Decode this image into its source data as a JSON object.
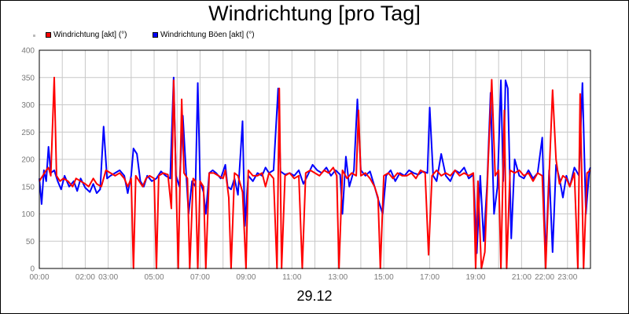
{
  "chart_data": {
    "type": "line",
    "title": "Windrichtung [pro Tag]",
    "xlabel": "29.12",
    "ylabel": "",
    "ylim": [
      0,
      400
    ],
    "yticks": [
      0,
      50,
      100,
      150,
      200,
      250,
      300,
      350,
      400
    ],
    "xlim": [
      0,
      24
    ],
    "xticks": [
      {
        "t": 0,
        "label": "00:00"
      },
      {
        "t": 2,
        "label": "02:00"
      },
      {
        "t": 3,
        "label": "03:00"
      },
      {
        "t": 5,
        "label": "05:00"
      },
      {
        "t": 7,
        "label": "07:00"
      },
      {
        "t": 9,
        "label": "09:00"
      },
      {
        "t": 11,
        "label": "11:00"
      },
      {
        "t": 13,
        "label": "13:00"
      },
      {
        "t": 15,
        "label": "15:00"
      },
      {
        "t": 17,
        "label": "17:00"
      },
      {
        "t": 19,
        "label": "19:00"
      },
      {
        "t": 21,
        "label": "21:00"
      },
      {
        "t": 22,
        "label": "22:00"
      },
      {
        "t": 23,
        "label": "23:00"
      }
    ],
    "grid": true,
    "legend_position": "top-left",
    "series": [
      {
        "name": "Windrichtung Böen [akt] (°)",
        "color": "#0000ff",
        "points": [
          [
            0.0,
            165
          ],
          [
            0.1,
            118
          ],
          [
            0.2,
            180
          ],
          [
            0.3,
            160
          ],
          [
            0.4,
            223
          ],
          [
            0.5,
            175
          ],
          [
            0.65,
            180
          ],
          [
            0.8,
            160
          ],
          [
            0.95,
            145
          ],
          [
            1.1,
            170
          ],
          [
            1.3,
            150
          ],
          [
            1.5,
            160
          ],
          [
            1.65,
            142
          ],
          [
            1.8,
            165
          ],
          [
            2.0,
            148
          ],
          [
            2.2,
            140
          ],
          [
            2.35,
            155
          ],
          [
            2.5,
            138
          ],
          [
            2.65,
            145
          ],
          [
            2.8,
            260
          ],
          [
            2.95,
            165
          ],
          [
            3.1,
            170
          ],
          [
            3.3,
            175
          ],
          [
            3.5,
            180
          ],
          [
            3.7,
            170
          ],
          [
            3.85,
            138
          ],
          [
            4.0,
            170
          ],
          [
            4.1,
            220
          ],
          [
            4.25,
            210
          ],
          [
            4.4,
            160
          ],
          [
            4.55,
            150
          ],
          [
            4.7,
            170
          ],
          [
            4.9,
            160
          ],
          [
            5.1,
            165
          ],
          [
            5.3,
            178
          ],
          [
            5.5,
            170
          ],
          [
            5.7,
            165
          ],
          [
            5.85,
            350
          ],
          [
            5.95,
            170
          ],
          [
            6.1,
            150
          ],
          [
            6.25,
            280
          ],
          [
            6.4,
            170
          ],
          [
            6.5,
            100
          ],
          [
            6.65,
            160
          ],
          [
            6.8,
            150
          ],
          [
            6.9,
            340
          ],
          [
            7.0,
            160
          ],
          [
            7.15,
            140
          ],
          [
            7.25,
            100
          ],
          [
            7.4,
            175
          ],
          [
            7.55,
            180
          ],
          [
            7.7,
            175
          ],
          [
            7.9,
            165
          ],
          [
            8.1,
            190
          ],
          [
            8.2,
            150
          ],
          [
            8.35,
            145
          ],
          [
            8.5,
            165
          ],
          [
            8.65,
            135
          ],
          [
            8.85,
            270
          ],
          [
            8.95,
            78
          ],
          [
            9.1,
            170
          ],
          [
            9.3,
            160
          ],
          [
            9.5,
            175
          ],
          [
            9.7,
            170
          ],
          [
            9.85,
            185
          ],
          [
            10.0,
            175
          ],
          [
            10.2,
            180
          ],
          [
            10.4,
            330
          ],
          [
            10.5,
            178
          ],
          [
            10.7,
            172
          ],
          [
            10.9,
            175
          ],
          [
            11.1,
            170
          ],
          [
            11.3,
            180
          ],
          [
            11.5,
            155
          ],
          [
            11.7,
            172
          ],
          [
            11.9,
            190
          ],
          [
            12.1,
            180
          ],
          [
            12.3,
            175
          ],
          [
            12.5,
            185
          ],
          [
            12.7,
            170
          ],
          [
            12.9,
            180
          ],
          [
            13.1,
            172
          ],
          [
            13.2,
            100
          ],
          [
            13.35,
            205
          ],
          [
            13.5,
            150
          ],
          [
            13.7,
            180
          ],
          [
            13.85,
            310
          ],
          [
            14.0,
            180
          ],
          [
            14.2,
            170
          ],
          [
            14.4,
            178
          ],
          [
            14.6,
            150
          ],
          [
            14.8,
            120
          ],
          [
            14.95,
            100
          ],
          [
            15.1,
            170
          ],
          [
            15.3,
            180
          ],
          [
            15.5,
            160
          ],
          [
            15.7,
            175
          ],
          [
            15.9,
            170
          ],
          [
            16.1,
            180
          ],
          [
            16.3,
            175
          ],
          [
            16.5,
            172
          ],
          [
            16.7,
            178
          ],
          [
            16.9,
            175
          ],
          [
            17.0,
            295
          ],
          [
            17.15,
            170
          ],
          [
            17.3,
            160
          ],
          [
            17.5,
            210
          ],
          [
            17.7,
            170
          ],
          [
            17.9,
            160
          ],
          [
            18.1,
            180
          ],
          [
            18.3,
            175
          ],
          [
            18.5,
            185
          ],
          [
            18.7,
            165
          ],
          [
            18.9,
            172
          ],
          [
            19.05,
            28
          ],
          [
            19.2,
            170
          ],
          [
            19.35,
            50
          ],
          [
            19.5,
            155
          ],
          [
            19.65,
            322
          ],
          [
            19.8,
            100
          ],
          [
            19.95,
            150
          ],
          [
            20.1,
            345
          ],
          [
            20.2,
            160
          ],
          [
            20.3,
            345
          ],
          [
            20.4,
            330
          ],
          [
            20.55,
            55
          ],
          [
            20.7,
            200
          ],
          [
            20.9,
            170
          ],
          [
            21.1,
            165
          ],
          [
            21.3,
            180
          ],
          [
            21.5,
            165
          ],
          [
            21.7,
            175
          ],
          [
            21.9,
            240
          ],
          [
            22.05,
            15
          ],
          [
            22.2,
            180
          ],
          [
            22.35,
            30
          ],
          [
            22.5,
            190
          ],
          [
            22.65,
            165
          ],
          [
            22.8,
            130
          ],
          [
            22.95,
            170
          ],
          [
            23.1,
            150
          ],
          [
            23.3,
            185
          ],
          [
            23.5,
            170
          ],
          [
            23.65,
            340
          ],
          [
            23.8,
            100
          ],
          [
            23.95,
            180
          ],
          [
            24.0,
            185
          ]
        ]
      },
      {
        "name": "Windrichtung [akt] (°)",
        "color": "#ff0000",
        "points": [
          [
            0.0,
            160
          ],
          [
            0.15,
            170
          ],
          [
            0.3,
            180
          ],
          [
            0.4,
            185
          ],
          [
            0.5,
            170
          ],
          [
            0.65,
            350
          ],
          [
            0.75,
            170
          ],
          [
            0.9,
            160
          ],
          [
            1.05,
            165
          ],
          [
            1.25,
            160
          ],
          [
            1.45,
            150
          ],
          [
            1.6,
            165
          ],
          [
            1.8,
            160
          ],
          [
            2.0,
            155
          ],
          [
            2.15,
            150
          ],
          [
            2.35,
            165
          ],
          [
            2.5,
            155
          ],
          [
            2.7,
            150
          ],
          [
            2.9,
            180
          ],
          [
            3.1,
            175
          ],
          [
            3.3,
            170
          ],
          [
            3.5,
            175
          ],
          [
            3.7,
            165
          ],
          [
            3.85,
            150
          ],
          [
            4.0,
            165
          ],
          [
            4.1,
            0
          ],
          [
            4.2,
            170
          ],
          [
            4.35,
            160
          ],
          [
            4.5,
            150
          ],
          [
            4.65,
            165
          ],
          [
            4.8,
            170
          ],
          [
            5.0,
            165
          ],
          [
            5.1,
            0
          ],
          [
            5.2,
            170
          ],
          [
            5.4,
            175
          ],
          [
            5.6,
            172
          ],
          [
            5.75,
            110
          ],
          [
            5.85,
            345
          ],
          [
            5.95,
            165
          ],
          [
            6.05,
            0
          ],
          [
            6.2,
            310
          ],
          [
            6.3,
            175
          ],
          [
            6.45,
            165
          ],
          [
            6.55,
            0
          ],
          [
            6.7,
            165
          ],
          [
            6.8,
            160
          ],
          [
            6.9,
            0
          ],
          [
            7.0,
            160
          ],
          [
            7.15,
            150
          ],
          [
            7.25,
            0
          ],
          [
            7.4,
            175
          ],
          [
            7.6,
            175
          ],
          [
            7.8,
            170
          ],
          [
            8.0,
            165
          ],
          [
            8.1,
            180
          ],
          [
            8.25,
            130
          ],
          [
            8.35,
            0
          ],
          [
            8.5,
            175
          ],
          [
            8.65,
            170
          ],
          [
            8.85,
            140
          ],
          [
            9.0,
            0
          ],
          [
            9.1,
            180
          ],
          [
            9.3,
            170
          ],
          [
            9.5,
            170
          ],
          [
            9.7,
            175
          ],
          [
            9.85,
            150
          ],
          [
            10.0,
            175
          ],
          [
            10.2,
            165
          ],
          [
            10.35,
            0
          ],
          [
            10.45,
            330
          ],
          [
            10.55,
            0
          ],
          [
            10.7,
            170
          ],
          [
            10.9,
            175
          ],
          [
            11.1,
            165
          ],
          [
            11.3,
            170
          ],
          [
            11.45,
            0
          ],
          [
            11.6,
            175
          ],
          [
            11.8,
            180
          ],
          [
            12.0,
            175
          ],
          [
            12.2,
            170
          ],
          [
            12.4,
            180
          ],
          [
            12.6,
            175
          ],
          [
            12.8,
            185
          ],
          [
            12.95,
            170
          ],
          [
            13.05,
            0
          ],
          [
            13.2,
            180
          ],
          [
            13.4,
            165
          ],
          [
            13.6,
            175
          ],
          [
            13.8,
            170
          ],
          [
            13.9,
            290
          ],
          [
            14.0,
            170
          ],
          [
            14.2,
            175
          ],
          [
            14.4,
            165
          ],
          [
            14.6,
            150
          ],
          [
            14.75,
            130
          ],
          [
            14.85,
            0
          ],
          [
            15.0,
            170
          ],
          [
            15.2,
            175
          ],
          [
            15.4,
            165
          ],
          [
            15.6,
            175
          ],
          [
            15.8,
            170
          ],
          [
            16.0,
            170
          ],
          [
            16.2,
            175
          ],
          [
            16.4,
            165
          ],
          [
            16.6,
            180
          ],
          [
            16.8,
            175
          ],
          [
            16.95,
            25
          ],
          [
            17.1,
            170
          ],
          [
            17.3,
            180
          ],
          [
            17.5,
            170
          ],
          [
            17.7,
            175
          ],
          [
            17.9,
            170
          ],
          [
            18.1,
            180
          ],
          [
            18.3,
            170
          ],
          [
            18.5,
            175
          ],
          [
            18.7,
            170
          ],
          [
            18.9,
            175
          ],
          [
            19.0,
            0
          ],
          [
            19.1,
            160
          ],
          [
            19.25,
            0
          ],
          [
            19.4,
            30
          ],
          [
            19.55,
            200
          ],
          [
            19.7,
            346
          ],
          [
            19.85,
            170
          ],
          [
            20.0,
            180
          ],
          [
            20.1,
            0
          ],
          [
            20.25,
            290
          ],
          [
            20.35,
            0
          ],
          [
            20.5,
            180
          ],
          [
            20.7,
            175
          ],
          [
            20.9,
            180
          ],
          [
            21.1,
            170
          ],
          [
            21.3,
            175
          ],
          [
            21.5,
            160
          ],
          [
            21.7,
            175
          ],
          [
            21.9,
            170
          ],
          [
            22.05,
            0
          ],
          [
            22.2,
            170
          ],
          [
            22.35,
            327
          ],
          [
            22.5,
            200
          ],
          [
            22.65,
            155
          ],
          [
            22.8,
            170
          ],
          [
            22.95,
            165
          ],
          [
            23.1,
            150
          ],
          [
            23.3,
            175
          ],
          [
            23.45,
            0
          ],
          [
            23.55,
            320
          ],
          [
            23.7,
            0
          ],
          [
            23.85,
            175
          ],
          [
            24.0,
            180
          ]
        ]
      }
    ]
  },
  "colors": {
    "grid": "#c8c8c8",
    "axis": "#000000",
    "tick_text": "#7a7a7a"
  }
}
